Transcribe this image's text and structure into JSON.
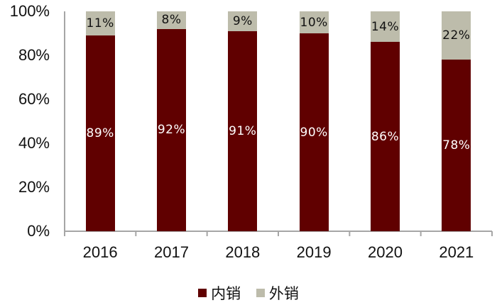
{
  "chart_data": {
    "type": "bar",
    "stacked": true,
    "percent_stacked": true,
    "title": "",
    "xlabel": "",
    "ylabel": "",
    "ylim": [
      0,
      100
    ],
    "yticks": [
      "0%",
      "20%",
      "40%",
      "60%",
      "80%",
      "100%"
    ],
    "categories": [
      "2016",
      "2017",
      "2018",
      "2019",
      "2020",
      "2021"
    ],
    "series": [
      {
        "name": "内销",
        "color": "#600000",
        "label_color": "#ffffff",
        "values": [
          89,
          92,
          91,
          90,
          86,
          78
        ],
        "labels": [
          "89%",
          "92%",
          "91%",
          "90%",
          "86%",
          "78%"
        ]
      },
      {
        "name": "外销",
        "color": "#bdbcab",
        "label_color": "#111111",
        "values": [
          11,
          8,
          9,
          10,
          14,
          22
        ],
        "labels": [
          "11%",
          "8%",
          "9%",
          "10%",
          "14%",
          "22%"
        ]
      }
    ],
    "legend_position": "bottom",
    "grid": false
  }
}
